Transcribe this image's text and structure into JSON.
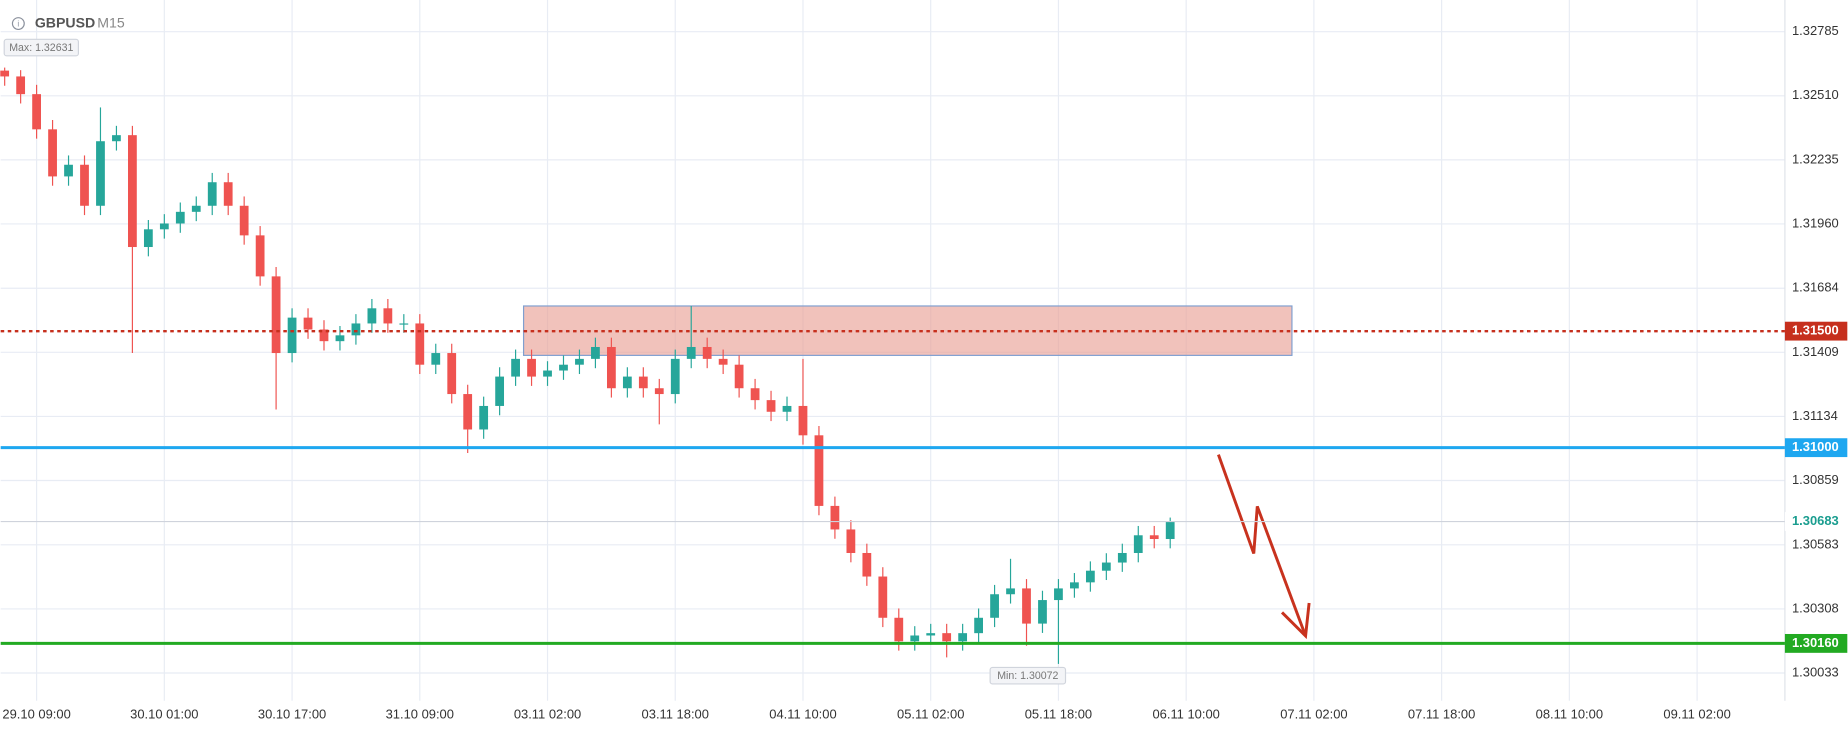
{
  "chart_data": {
    "type": "candlestick",
    "title": "GBPUSD",
    "subtitle": "M15",
    "max_label": "Max: 1.32631",
    "min_label": "Min: 1.30072",
    "up_color": "#26a69a",
    "down_color": "#ef5350",
    "grid": true,
    "xlim": [
      -18,
      876
    ],
    "ylim": [
      1.29914,
      1.32921
    ],
    "xticks": [
      {
        "value": 0,
        "label": "29.10 09:00"
      },
      {
        "value": 64,
        "label": "30.10 01:00"
      },
      {
        "value": 128,
        "label": "30.10 17:00"
      },
      {
        "value": 192,
        "label": "31.10 09:00"
      },
      {
        "value": 256,
        "label": "03.11 02:00"
      },
      {
        "value": 320,
        "label": "03.11 18:00"
      },
      {
        "value": 384,
        "label": "04.11 10:00"
      },
      {
        "value": 448,
        "label": "05.11 02:00"
      },
      {
        "value": 512,
        "label": "05.11 18:00"
      },
      {
        "value": 576,
        "label": "06.11 10:00"
      },
      {
        "value": 640,
        "label": "07.11 02:00"
      },
      {
        "value": 704,
        "label": "07.11 18:00"
      },
      {
        "value": 768,
        "label": "08.11 10:00"
      },
      {
        "value": 832,
        "label": "09.11 02:00"
      }
    ],
    "yticks": [
      {
        "value": 1.32785,
        "label": "1.32785"
      },
      {
        "value": 1.3251,
        "label": "1.32510"
      },
      {
        "value": 1.32235,
        "label": "1.32235"
      },
      {
        "value": 1.3196,
        "label": "1.31960"
      },
      {
        "value": 1.31684,
        "label": "1.31684"
      },
      {
        "value": 1.31409,
        "label": "1.31409"
      },
      {
        "value": 1.31134,
        "label": "1.31134"
      },
      {
        "value": 1.30859,
        "label": "1.30859"
      },
      {
        "value": 1.30583,
        "label": "1.30583"
      },
      {
        "value": 1.30308,
        "label": "1.30308"
      },
      {
        "value": 1.30033,
        "label": "1.30033"
      }
    ],
    "levels": [
      {
        "value": 1.315,
        "label": "1.31500",
        "color": "#c62f1d",
        "dashed": true
      },
      {
        "value": 1.31,
        "label": "1.31000",
        "color": "#1ea7f0",
        "dashed": false
      },
      {
        "value": 1.3016,
        "label": "1.30160",
        "color": "#22aa22",
        "dashed": false
      },
      {
        "value": 1.30683,
        "label": "1.30683",
        "color": "#cfd3dc",
        "dashed": false
      }
    ],
    "zone": {
      "x": [
        244,
        629
      ],
      "y": [
        1.31396,
        1.31608
      ],
      "color": "#e9a296"
    },
    "x": [
      -16,
      -8,
      0,
      8,
      16,
      24,
      32,
      40,
      48,
      56,
      64,
      72,
      80,
      88,
      96,
      104,
      112,
      120,
      128,
      136,
      144,
      152,
      160,
      168,
      176,
      184,
      192,
      200,
      208,
      216,
      224,
      232,
      240,
      248,
      256,
      264,
      272,
      280,
      288,
      296,
      304,
      312,
      320,
      328,
      336,
      344,
      352,
      360,
      368,
      376,
      384,
      392,
      400,
      408,
      416,
      424,
      432,
      440,
      448,
      456,
      464,
      472,
      480,
      488,
      496,
      504,
      512,
      520,
      528,
      536,
      544,
      552,
      560,
      568
    ],
    "open": [
      1.32618,
      1.32593,
      1.32517,
      1.32366,
      1.32164,
      1.32214,
      1.32038,
      1.32315,
      1.32341,
      1.31861,
      1.31937,
      1.31962,
      1.32012,
      1.32038,
      1.32139,
      1.32038,
      1.31911,
      1.31735,
      1.31406,
      1.31558,
      1.31507,
      1.31457,
      1.31482,
      1.31533,
      1.31598,
      1.31533,
      1.31533,
      1.31356,
      1.31406,
      1.3123,
      1.31078,
      1.31179,
      1.31305,
      1.31381,
      1.31305,
      1.31331,
      1.31356,
      1.31381,
      1.31432,
      1.31255,
      1.31305,
      1.31255,
      1.3123,
      1.31381,
      1.31432,
      1.31381,
      1.31356,
      1.31255,
      1.31204,
      1.31154,
      1.31179,
      1.31053,
      1.3075,
      1.30649,
      1.30548,
      1.30447,
      1.3027,
      1.30169,
      1.30194,
      1.30204,
      1.30169,
      1.30204,
      1.3027,
      1.30371,
      1.30396,
      1.30245,
      1.30346,
      1.30396,
      1.30422,
      1.30472,
      1.30507,
      1.30548,
      1.30624,
      1.30608
    ],
    "high": [
      1.32631,
      1.3262,
      1.32557,
      1.32406,
      1.32254,
      1.32254,
      1.3246,
      1.32381,
      1.32381,
      1.31977,
      1.32002,
      1.32052,
      1.32078,
      1.32179,
      1.32179,
      1.32078,
      1.31951,
      1.31775,
      1.31598,
      1.31598,
      1.31547,
      1.31522,
      1.31573,
      1.31638,
      1.31638,
      1.31573,
      1.31573,
      1.31446,
      1.31446,
      1.3127,
      1.31219,
      1.31345,
      1.31421,
      1.31421,
      1.31371,
      1.31396,
      1.31421,
      1.31472,
      1.31472,
      1.31345,
      1.31345,
      1.31295,
      1.31421,
      1.31608,
      1.31472,
      1.31421,
      1.31396,
      1.31295,
      1.31244,
      1.31219,
      1.31381,
      1.31093,
      1.3079,
      1.30689,
      1.30588,
      1.30487,
      1.3031,
      1.30234,
      1.30244,
      1.30244,
      1.30244,
      1.3031,
      1.30411,
      1.30523,
      1.30436,
      1.30386,
      1.30436,
      1.30462,
      1.30512,
      1.30547,
      1.30588,
      1.30664,
      1.30664,
      1.307
    ],
    "low": [
      1.32553,
      1.32477,
      1.32326,
      1.32124,
      1.32124,
      1.31998,
      1.31998,
      1.32275,
      1.31406,
      1.31821,
      1.31897,
      1.31922,
      1.31972,
      1.31998,
      1.31998,
      1.31871,
      1.31695,
      1.31164,
      1.31366,
      1.31467,
      1.31417,
      1.31417,
      1.31442,
      1.31493,
      1.31493,
      1.31493,
      1.31316,
      1.31316,
      1.3119,
      1.30977,
      1.31038,
      1.31139,
      1.31265,
      1.31265,
      1.31265,
      1.31291,
      1.31316,
      1.31341,
      1.31215,
      1.31215,
      1.31215,
      1.311,
      1.3119,
      1.31341,
      1.31341,
      1.31316,
      1.31215,
      1.31164,
      1.31114,
      1.31114,
      1.31013,
      1.3071,
      1.30609,
      1.30508,
      1.30407,
      1.3023,
      1.30129,
      1.30129,
      1.30154,
      1.301,
      1.30129,
      1.30164,
      1.3023,
      1.30331,
      1.3015,
      1.30205,
      1.30072,
      1.30356,
      1.30382,
      1.30432,
      1.30467,
      1.30508,
      1.30568,
      1.30568
    ],
    "close": [
      1.32593,
      1.32517,
      1.32366,
      1.32164,
      1.32214,
      1.32038,
      1.32315,
      1.32341,
      1.31861,
      1.31937,
      1.31962,
      1.32012,
      1.32038,
      1.32139,
      1.32038,
      1.31911,
      1.31735,
      1.31406,
      1.31558,
      1.31507,
      1.31457,
      1.31482,
      1.31533,
      1.31598,
      1.31533,
      1.31533,
      1.31356,
      1.31406,
      1.3123,
      1.31078,
      1.31179,
      1.31305,
      1.31381,
      1.31305,
      1.31331,
      1.31356,
      1.31381,
      1.31432,
      1.31255,
      1.31305,
      1.31255,
      1.3123,
      1.31381,
      1.31432,
      1.31381,
      1.31356,
      1.31255,
      1.31204,
      1.31154,
      1.31179,
      1.31053,
      1.3075,
      1.30649,
      1.30548,
      1.30447,
      1.3027,
      1.30169,
      1.30194,
      1.30204,
      1.30169,
      1.30204,
      1.3027,
      1.30371,
      1.30396,
      1.30245,
      1.30346,
      1.30396,
      1.30422,
      1.30472,
      1.30507,
      1.30548,
      1.30624,
      1.30608,
      1.30683
    ]
  }
}
